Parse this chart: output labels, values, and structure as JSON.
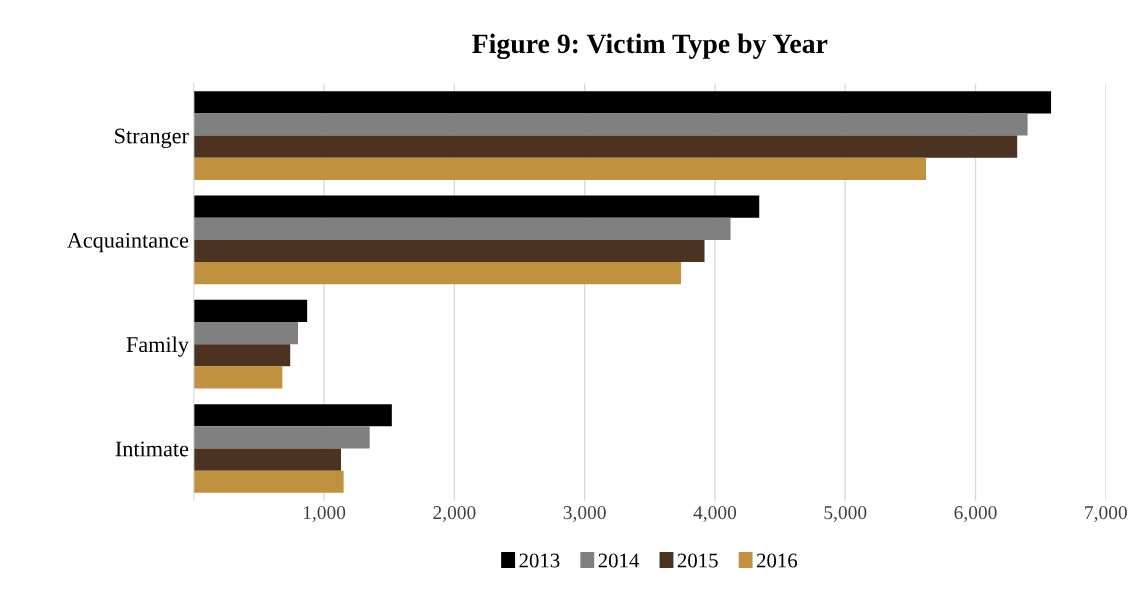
{
  "chart_data": {
    "type": "bar",
    "orientation": "horizontal",
    "title": "Figure 9: Victim Type by Year",
    "categories": [
      "Stranger",
      "Acquaintance",
      "Family",
      "Intimate"
    ],
    "series": [
      {
        "name": "2013",
        "color": "#000000",
        "values": [
          6580,
          4340,
          870,
          1520
        ]
      },
      {
        "name": "2014",
        "color": "#808080",
        "values": [
          6400,
          4120,
          800,
          1350
        ]
      },
      {
        "name": "2015",
        "color": "#4b3221",
        "values": [
          6320,
          3920,
          740,
          1130
        ]
      },
      {
        "name": "2016",
        "color": "#c0923f",
        "values": [
          5620,
          3740,
          680,
          1150
        ]
      }
    ],
    "xlim": [
      0,
      7000
    ],
    "xticks": [
      {
        "value": 1000,
        "label": "1,000"
      },
      {
        "value": 2000,
        "label": "2,000"
      },
      {
        "value": 3000,
        "label": "3,000"
      },
      {
        "value": 4000,
        "label": "4,000"
      },
      {
        "value": 5000,
        "label": "5,000"
      },
      {
        "value": 6000,
        "label": "6,000"
      },
      {
        "value": 7000,
        "label": "7,000"
      }
    ],
    "grid": "x",
    "legend": "bottom"
  }
}
